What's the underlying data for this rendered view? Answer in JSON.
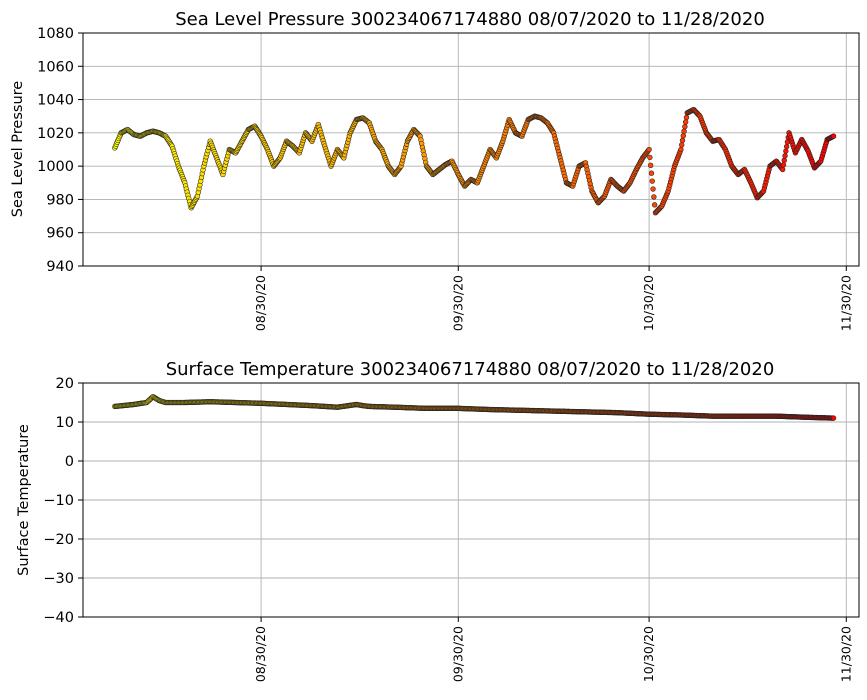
{
  "chart_data": [
    {
      "type": "scatter",
      "title": "Sea Level Pressure 300234067174880  08/07/2020 to 11/28/2020",
      "ylabel": "Sea Level Pressure",
      "xlabel": "",
      "xlim": [
        "2020-08-02",
        "2020-12-02"
      ],
      "ylim": [
        940,
        1080
      ],
      "yticks": [
        940,
        960,
        980,
        1000,
        1020,
        1040,
        1060,
        1080
      ],
      "xticks": [
        "08/30/20",
        "09/30/20",
        "10/30/20",
        "11/30/20"
      ],
      "grid": true,
      "color_scale": [
        "#ffff00",
        "#ff8c00",
        "#ff0000"
      ],
      "series": [
        {
          "x": [
            "2020-08-07",
            "2020-08-08",
            "2020-08-09",
            "2020-08-10",
            "2020-08-11",
            "2020-08-12",
            "2020-08-13",
            "2020-08-14",
            "2020-08-15",
            "2020-08-16",
            "2020-08-17",
            "2020-08-18",
            "2020-08-19",
            "2020-08-20",
            "2020-08-21",
            "2020-08-22",
            "2020-08-23",
            "2020-08-24",
            "2020-08-25",
            "2020-08-26",
            "2020-08-27",
            "2020-08-28",
            "2020-08-29",
            "2020-08-30",
            "2020-08-31",
            "2020-09-01",
            "2020-09-02",
            "2020-09-03",
            "2020-09-04",
            "2020-09-05",
            "2020-09-06",
            "2020-09-07",
            "2020-09-08",
            "2020-09-09",
            "2020-09-10",
            "2020-09-11",
            "2020-09-12",
            "2020-09-13",
            "2020-09-14",
            "2020-09-15",
            "2020-09-16",
            "2020-09-17",
            "2020-09-18",
            "2020-09-19",
            "2020-09-20",
            "2020-09-21",
            "2020-09-22",
            "2020-09-23",
            "2020-09-24",
            "2020-09-25",
            "2020-09-26",
            "2020-09-27",
            "2020-09-28",
            "2020-09-29",
            "2020-09-30",
            "2020-10-01",
            "2020-10-02",
            "2020-10-03",
            "2020-10-04",
            "2020-10-05",
            "2020-10-06",
            "2020-10-07",
            "2020-10-08",
            "2020-10-09",
            "2020-10-10",
            "2020-10-11",
            "2020-10-12",
            "2020-10-13",
            "2020-10-14",
            "2020-10-15",
            "2020-10-16",
            "2020-10-17",
            "2020-10-18",
            "2020-10-19",
            "2020-10-20",
            "2020-10-21",
            "2020-10-22",
            "2020-10-23",
            "2020-10-24",
            "2020-10-25",
            "2020-10-26",
            "2020-10-27",
            "2020-10-28",
            "2020-10-29",
            "2020-10-30",
            "2020-10-31",
            "2020-11-01",
            "2020-11-02",
            "2020-11-03",
            "2020-11-04",
            "2020-11-05",
            "2020-11-06",
            "2020-11-07",
            "2020-11-08",
            "2020-11-09",
            "2020-11-10",
            "2020-11-11",
            "2020-11-12",
            "2020-11-13",
            "2020-11-14",
            "2020-11-15",
            "2020-11-16",
            "2020-11-17",
            "2020-11-18",
            "2020-11-19",
            "2020-11-20",
            "2020-11-21",
            "2020-11-22",
            "2020-11-23",
            "2020-11-24",
            "2020-11-25",
            "2020-11-26",
            "2020-11-27",
            "2020-11-28"
          ],
          "values": [
            1011,
            1020,
            1022,
            1019,
            1018,
            1020,
            1021,
            1020,
            1018,
            1012,
            1000,
            990,
            975,
            982,
            1000,
            1015,
            1005,
            995,
            1010,
            1008,
            1015,
            1022,
            1024,
            1018,
            1010,
            1000,
            1005,
            1015,
            1012,
            1008,
            1020,
            1015,
            1025,
            1012,
            1000,
            1010,
            1005,
            1020,
            1028,
            1029,
            1026,
            1015,
            1010,
            1000,
            995,
            1000,
            1015,
            1022,
            1018,
            1000,
            995,
            998,
            1001,
            1003,
            995,
            988,
            992,
            990,
            1000,
            1010,
            1005,
            1015,
            1028,
            1020,
            1018,
            1028,
            1030,
            1029,
            1026,
            1020,
            1005,
            990,
            988,
            1000,
            1002,
            985,
            978,
            982,
            992,
            988,
            985,
            990,
            998,
            1005,
            1010,
            972,
            976,
            985,
            1000,
            1010,
            1032,
            1034,
            1030,
            1020,
            1015,
            1016,
            1010,
            1000,
            995,
            998,
            990,
            981,
            985,
            1000,
            1003,
            998,
            1020,
            1008,
            1016,
            1009,
            999,
            1003,
            1016,
            1018
          ]
        }
      ]
    },
    {
      "type": "scatter",
      "title": "Surface Temperature 300234067174880  08/07/2020 to 11/28/2020",
      "ylabel": "Surface Temperature",
      "xlabel": "",
      "xlim": [
        "2020-08-02",
        "2020-12-02"
      ],
      "ylim": [
        -40,
        20
      ],
      "yticks": [
        -40,
        -30,
        -20,
        -10,
        0,
        10,
        20
      ],
      "xticks": [
        "08/30/20",
        "09/30/20",
        "10/30/20",
        "11/30/20"
      ],
      "grid": true,
      "color_scale": [
        "#ffff00",
        "#ff8c00",
        "#ff0000"
      ],
      "series": [
        {
          "x": [
            "2020-08-07",
            "2020-08-10",
            "2020-08-12",
            "2020-08-13",
            "2020-08-14",
            "2020-08-15",
            "2020-08-18",
            "2020-08-22",
            "2020-08-26",
            "2020-08-30",
            "2020-09-03",
            "2020-09-07",
            "2020-09-11",
            "2020-09-14",
            "2020-09-15",
            "2020-09-16",
            "2020-09-20",
            "2020-09-25",
            "2020-09-30",
            "2020-10-05",
            "2020-10-10",
            "2020-10-15",
            "2020-10-20",
            "2020-10-25",
            "2020-10-30",
            "2020-11-04",
            "2020-11-09",
            "2020-11-14",
            "2020-11-19",
            "2020-11-24",
            "2020-11-28"
          ],
          "values": [
            14.0,
            14.5,
            15.0,
            16.5,
            15.5,
            15.0,
            15.0,
            15.2,
            15.0,
            14.8,
            14.5,
            14.2,
            13.8,
            14.5,
            14.2,
            14.0,
            13.8,
            13.5,
            13.5,
            13.2,
            13.0,
            12.8,
            12.6,
            12.4,
            12.0,
            11.8,
            11.5,
            11.5,
            11.5,
            11.2,
            11.0
          ]
        }
      ]
    }
  ]
}
